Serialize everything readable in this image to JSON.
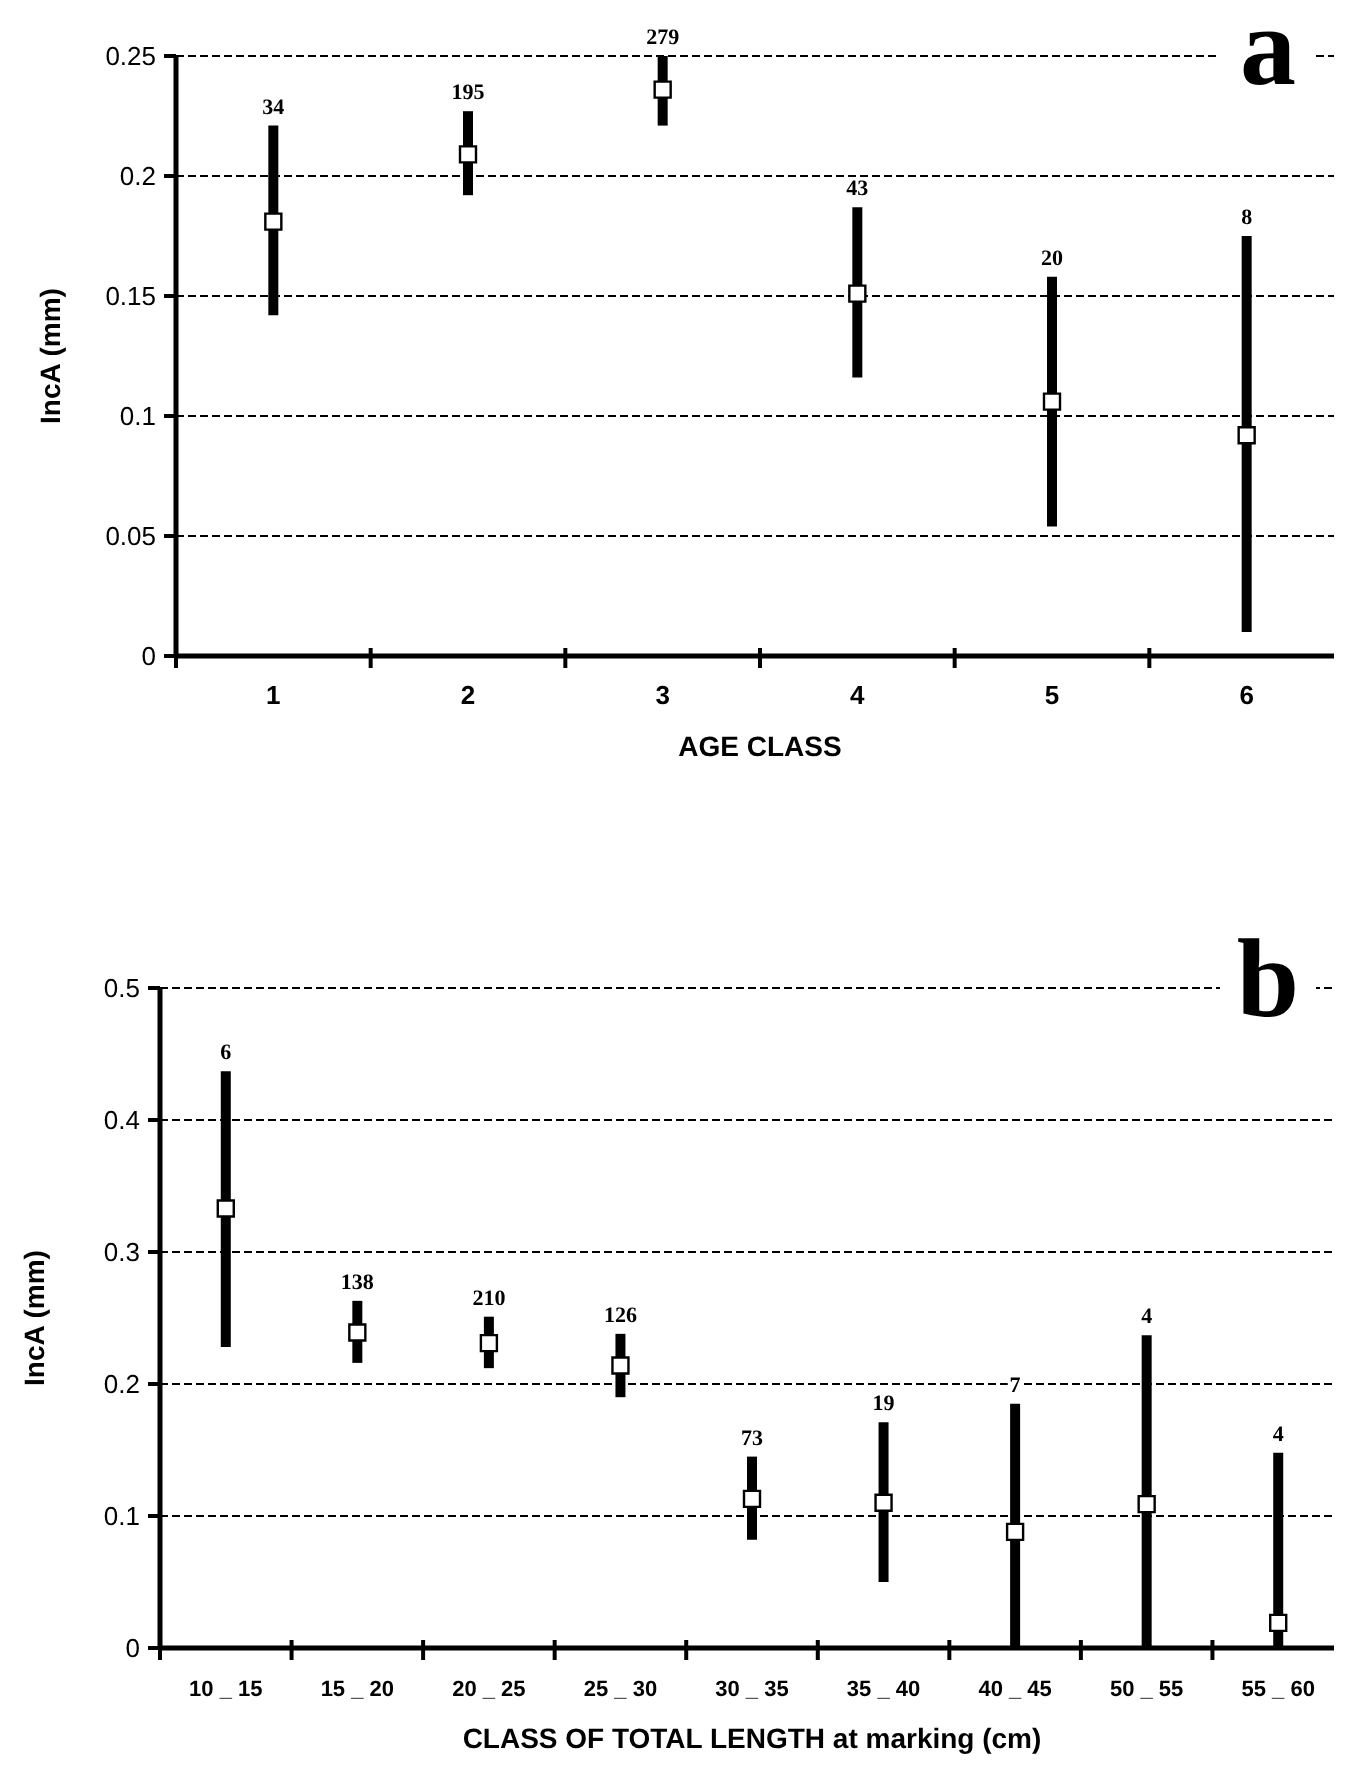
{
  "chart_data": [
    {
      "type": "scatter",
      "title": "a",
      "xlabel": "AGE CLASS",
      "ylabel": "IncA  (mm)",
      "categories": [
        "1",
        "2",
        "3",
        "4",
        "5",
        "6"
      ],
      "series": [
        {
          "color": "#000000",
          "values": [
            0.181,
            0.209,
            0.236,
            0.151,
            0.106,
            0.092
          ],
          "errors": [
            [
              0.142,
              0.221
            ],
            [
              0.192,
              0.227
            ],
            [
              0.221,
              0.25
            ],
            [
              0.116,
              0.187
            ],
            [
              0.054,
              0.158
            ],
            [
              0.01,
              0.175
            ]
          ]
        }
      ],
      "ylim": [
        0,
        0.25
      ],
      "yticks": [
        0,
        0.05,
        0.1,
        0.15,
        0.2,
        0.25
      ],
      "grid": "y",
      "marker": "square",
      "annotations": [
        {
          "text": "34",
          "x": "1",
          "y": 0.221
        },
        {
          "text": "195",
          "x": "2",
          "y": 0.227
        },
        {
          "text": "279",
          "x": "3",
          "y": 0.25
        },
        {
          "text": "43",
          "x": "4",
          "y": 0.187
        },
        {
          "text": "20",
          "x": "5",
          "y": 0.158
        },
        {
          "text": "8",
          "x": "6",
          "y": 0.175
        }
      ]
    },
    {
      "type": "scatter",
      "title": "b",
      "xlabel": "CLASS OF TOTAL LENGTH at marking (cm)",
      "ylabel": "IncA  (mm)",
      "categories": [
        "10 _ 15",
        "15 _ 20",
        "20 _ 25",
        "25 _ 30",
        "30 _ 35",
        "35 _ 40",
        "40 _ 45",
        "50 _ 55",
        "55 _ 60"
      ],
      "series": [
        {
          "color": "#000000",
          "values": [
            0.333,
            0.239,
            0.231,
            0.214,
            0.113,
            0.11,
            0.088,
            0.109,
            0.019
          ],
          "errors": [
            [
              0.228,
              0.437
            ],
            [
              0.216,
              0.263
            ],
            [
              0.212,
              0.251
            ],
            [
              0.19,
              0.238
            ],
            [
              0.082,
              0.145
            ],
            [
              0.05,
              0.171
            ],
            [
              0,
              0.185
            ],
            [
              0,
              0.237
            ],
            [
              0,
              0.148
            ]
          ]
        }
      ],
      "ylim": [
        0,
        0.5
      ],
      "yticks": [
        0,
        0.1,
        0.2,
        0.3,
        0.4,
        0.5
      ],
      "grid": "y",
      "marker": "square",
      "annotations": [
        {
          "text": "6",
          "x": "10 _ 15",
          "y": 0.437
        },
        {
          "text": "138",
          "x": "15 _ 20",
          "y": 0.263
        },
        {
          "text": "210",
          "x": "20 _ 25",
          "y": 0.251
        },
        {
          "text": "126",
          "x": "25 _ 30",
          "y": 0.238
        },
        {
          "text": "73",
          "x": "30 _ 35",
          "y": 0.145
        },
        {
          "text": "19",
          "x": "35 _ 40",
          "y": 0.171
        },
        {
          "text": "7",
          "x": "40 _ 45",
          "y": 0.185
        },
        {
          "text": "4",
          "x": "50 _ 55",
          "y": 0.237
        },
        {
          "text": "4",
          "x": "55 _ 60",
          "y": 0.148
        }
      ]
    }
  ]
}
